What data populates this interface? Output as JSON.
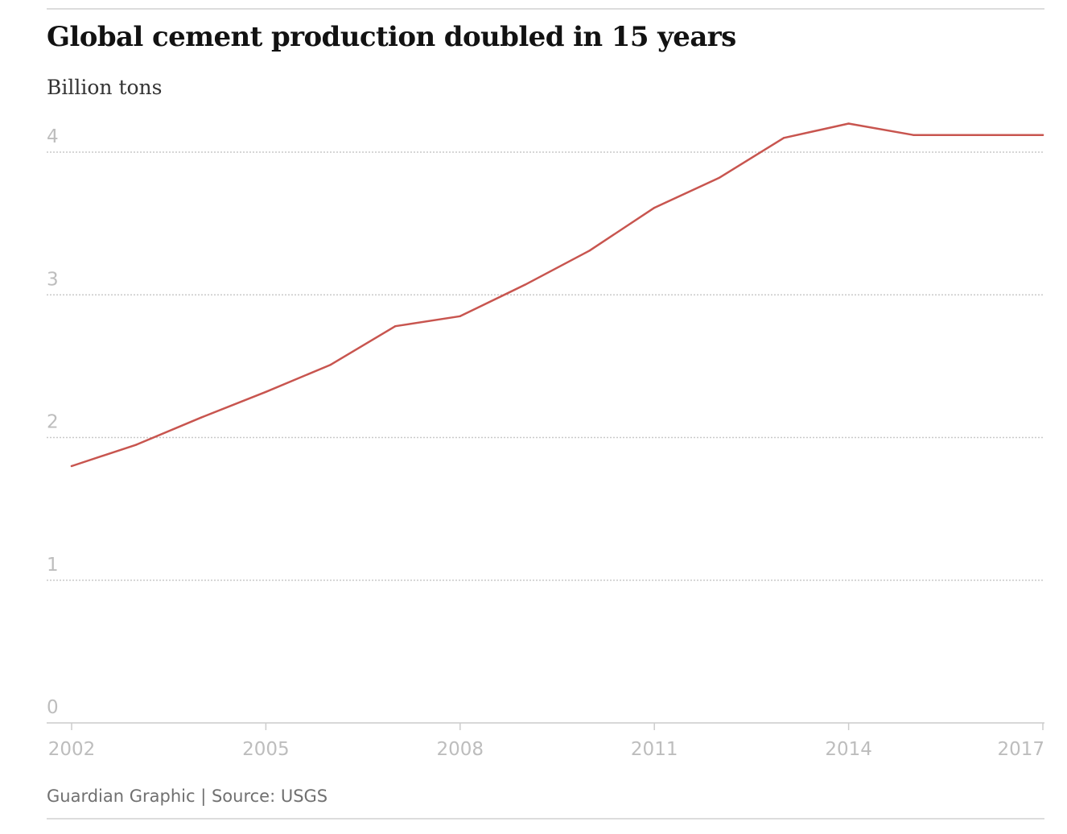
{
  "header": {
    "title": "Global cement production doubled in 15 years",
    "subtitle": "Billion tons"
  },
  "footer": {
    "credit": "Guardian Graphic | Source: USGS"
  },
  "colors": {
    "line": "#c8554f",
    "gridline": "#c9c9c9",
    "tick_label": "#bdbdbd",
    "axis": "#cccccc"
  },
  "chart_data": {
    "type": "line",
    "title": "Global cement production doubled in 15 years",
    "subtitle": "Billion tons",
    "xlabel": "",
    "ylabel": "",
    "xlim": [
      2002,
      2017
    ],
    "ylim": [
      0,
      4.1
    ],
    "x_ticks": [
      "2002",
      "2005",
      "2008",
      "2011",
      "2014",
      "2017"
    ],
    "y_ticks": [
      "0",
      "1",
      "2",
      "3",
      "4"
    ],
    "grid": true,
    "legend": "none",
    "series": [
      {
        "x": [
          2002,
          2003,
          2004,
          2005,
          2006,
          2007,
          2008,
          2009,
          2010,
          2011,
          2012,
          2013,
          2014,
          2015,
          2016,
          2017
        ],
        "values": [
          1.8,
          1.95,
          2.14,
          2.32,
          2.51,
          2.78,
          2.85,
          3.07,
          3.31,
          3.61,
          3.82,
          4.1,
          4.2,
          4.12,
          4.12,
          4.12
        ]
      }
    ]
  }
}
